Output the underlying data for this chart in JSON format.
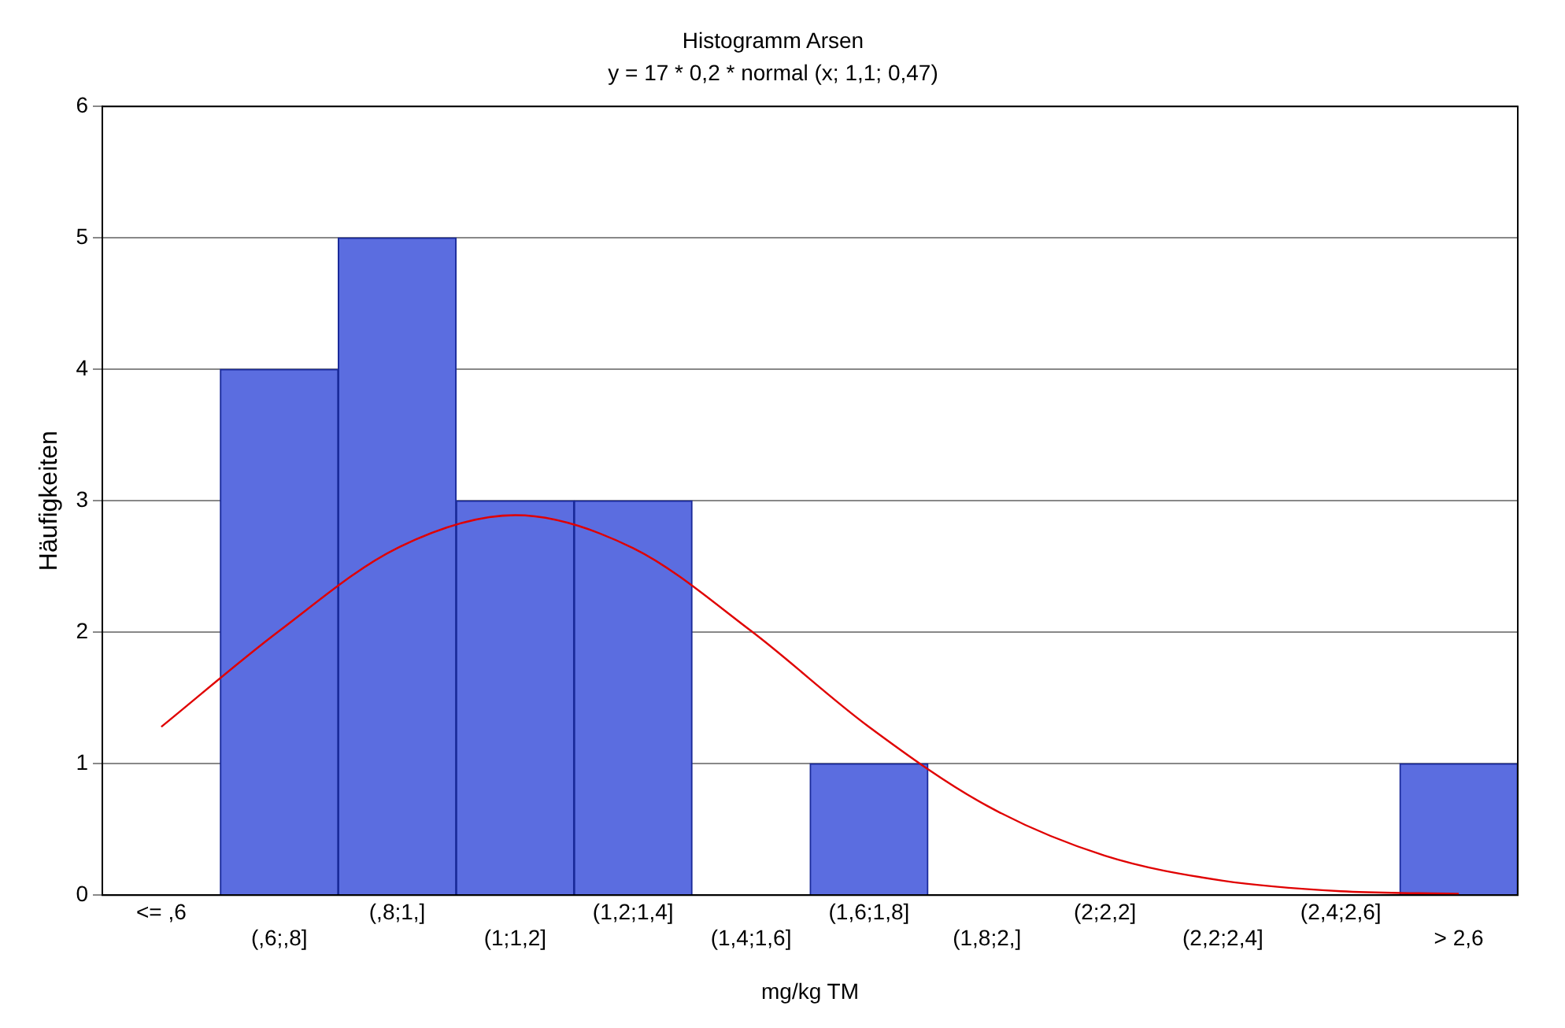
{
  "chart_data": {
    "type": "bar",
    "title": "Histogramm Arsen",
    "subtitle": "y = 17 * 0,2 * normal (x; 1,1; 0,47)",
    "xlabel": "mg/kg TM",
    "ylabel": "Häufigkeiten",
    "categories": [
      "<= ,6",
      "(,6;,8]",
      "(,8;1,]",
      "(1;1,2]",
      "(1,2;1,4]",
      "(1,4;1,6]",
      "(1,6;1,8]",
      "(1,8;2,]",
      "(2;2,2]",
      "(2,2;2,4]",
      "(2,4;2,6]",
      "> 2,6"
    ],
    "series": [
      {
        "color": "#5b6de0",
        "values": [
          0,
          4,
          5,
          3,
          3,
          0,
          1,
          0,
          0,
          0,
          0,
          1
        ]
      },
      {
        "type": "line",
        "color": "#e00000",
        "values": [
          1.28,
          2.01,
          2.64,
          2.89,
          2.64,
          2.01,
          1.28,
          0.68,
          0.3,
          0.11,
          0.03,
          0.01
        ]
      }
    ],
    "ylim": [
      0,
      6
    ],
    "yticks": [
      0,
      1,
      2,
      3,
      4,
      5,
      6
    ],
    "grid": "y",
    "legend": false
  }
}
